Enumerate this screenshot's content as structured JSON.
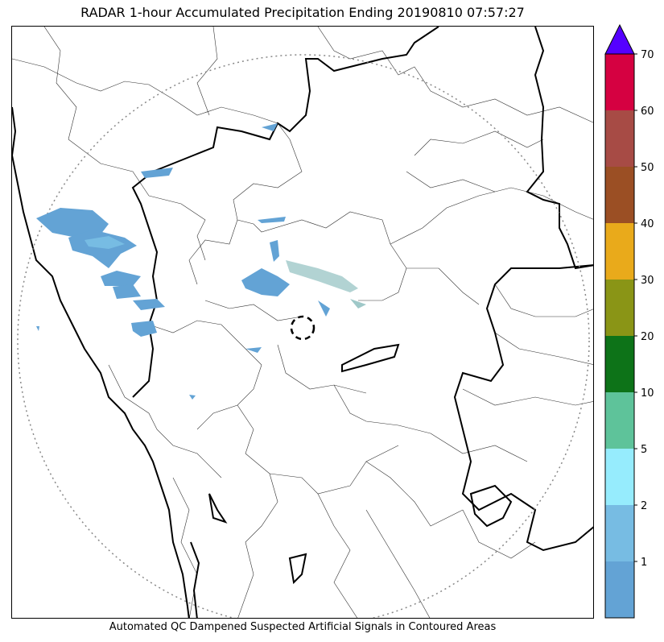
{
  "title": "RADAR 1-hour Accumulated Precipitation Ending 20190810 07:57:27",
  "caption": "Automated QC Dampened Suspected Artificial Signals in Contoured Areas",
  "colorbar": {
    "labels": [
      "1",
      "2",
      "5",
      "10",
      "20",
      "30",
      "40",
      "50",
      "60",
      "70"
    ],
    "colors": [
      "#63a3d5",
      "#77bce3",
      "#96ecfd",
      "#5ec39a",
      "#0d7318",
      "#8a9516",
      "#e9aa1b",
      "#9b4f24",
      "#a74b45",
      "#d50141"
    ],
    "extend_color": "#5500ff"
  },
  "map": {
    "range_ring": "dotted grey circle",
    "radar_site_marker": "dashed black circle",
    "rain_fill_color": "#63a3d5",
    "rain_core_color": "#77bce3",
    "qc_contour_color": "#9fc8c8"
  }
}
